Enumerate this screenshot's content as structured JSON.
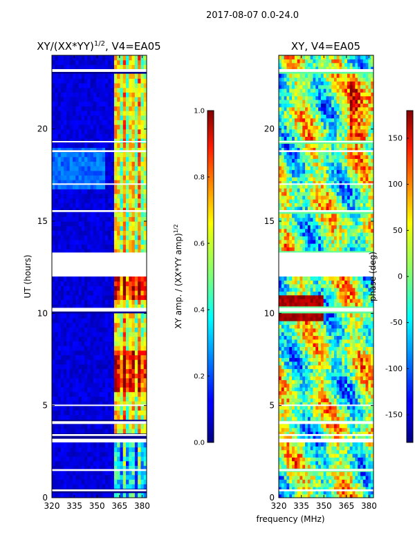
{
  "figure": {
    "suptitle": "2017-08-07 0.0-24.0",
    "xlabel": "frequency (MHz)"
  },
  "chart_data": [
    {
      "type": "heatmap",
      "title_main": "XY/(XX*YY)",
      "title_exp": "1/2",
      "title_tail": ", V4=EA05",
      "ylabel": "UT (hours)",
      "xlim": [
        320,
        383
      ],
      "ylim": [
        0,
        24
      ],
      "xticks": [
        320,
        335,
        350,
        365,
        380
      ],
      "yticks": [
        0,
        5,
        10,
        15,
        20
      ],
      "colorbar": {
        "label_main": "XY amp. / (XX*YY amp)",
        "label_exp": "1/2",
        "range": [
          0.0,
          1.0
        ],
        "ticks": [
          "0.0",
          "0.2",
          "0.4",
          "0.6",
          "0.8",
          "1.0"
        ],
        "tick_values": [
          0.0,
          0.2,
          0.4,
          0.6,
          0.8,
          1.0
        ]
      },
      "flagged_ut_hours": [
        [
          12.0,
          13.3
        ],
        [
          10.1,
          10.3
        ],
        [
          3.0,
          3.2
        ],
        [
          3.35,
          3.45
        ],
        [
          4.0,
          4.15
        ],
        [
          23.1,
          23.25
        ],
        [
          18.75,
          18.85
        ],
        [
          15.5,
          15.6
        ],
        [
          1.45,
          1.55
        ],
        [
          0.35,
          0.45
        ],
        [
          5.0,
          5.05
        ],
        [
          17.0,
          17.05
        ],
        [
          19.3,
          19.35
        ]
      ]
    },
    {
      "type": "heatmap",
      "title": "XY, V4=EA05",
      "xlim": [
        320,
        383
      ],
      "ylim": [
        0,
        24
      ],
      "xticks": [
        320,
        335,
        350,
        365,
        380
      ],
      "yticks": [
        0,
        5,
        10,
        15,
        20
      ],
      "colorbar": {
        "label": "phase (deg)",
        "range": [
          -180,
          180
        ],
        "ticks": [
          "-150",
          "-100",
          "-50",
          "0",
          "50",
          "100",
          "150"
        ],
        "tick_values": [
          -150,
          -100,
          -50,
          0,
          50,
          100,
          150
        ]
      },
      "flagged_ut_hours": [
        [
          12.0,
          13.3
        ],
        [
          10.1,
          10.3
        ],
        [
          3.0,
          3.2
        ],
        [
          3.35,
          3.45
        ],
        [
          4.0,
          4.15
        ],
        [
          23.1,
          23.25
        ],
        [
          18.75,
          18.85
        ],
        [
          15.5,
          15.6
        ],
        [
          1.45,
          1.55
        ],
        [
          0.35,
          0.45
        ],
        [
          5.0,
          5.05
        ],
        [
          17.0,
          17.05
        ],
        [
          19.3,
          19.35
        ]
      ]
    }
  ]
}
